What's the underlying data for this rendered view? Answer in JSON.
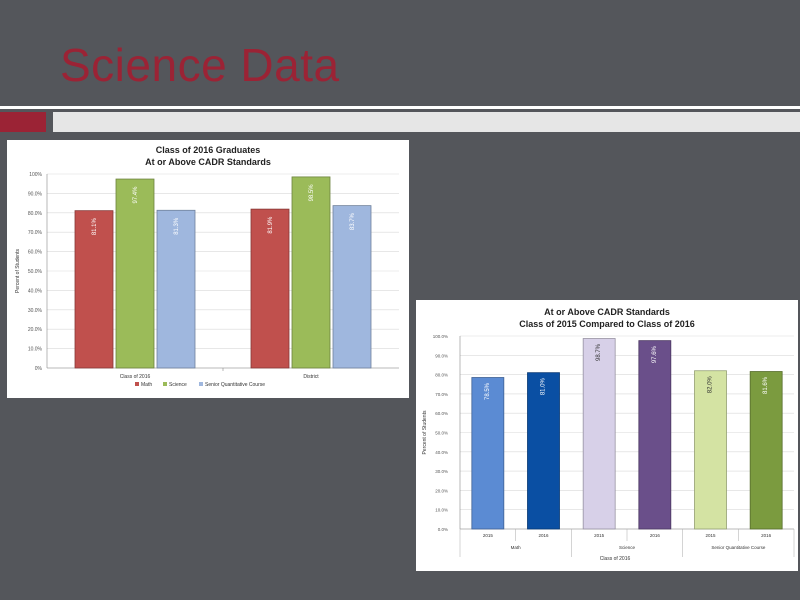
{
  "slide": {
    "title": "Science Data"
  },
  "colors": {
    "title_red": "#9b2335",
    "background": "#54565b",
    "accent_bar_red": "#9b2335",
    "accent_bar_light": "#e6e6e6"
  },
  "chart_data": [
    {
      "type": "bar",
      "title": "Class of 2016 Graduates",
      "subtitle": "At or Above CADR Standards",
      "ylabel": "Percent of Students",
      "xlabel": "",
      "ylim": [
        0,
        100
      ],
      "yticks": [
        "0%",
        "10.0%",
        "20.0%",
        "30.0%",
        "40.0%",
        "50.0%",
        "60.0%",
        "70.0%",
        "80.0%",
        "90.0%",
        "100%"
      ],
      "categories": [
        "Class of 2016",
        "District"
      ],
      "series": [
        {
          "name": "Math",
          "color": "#c0504d",
          "values": [
            81.1,
            81.9
          ],
          "labels": [
            "81.1%",
            "81.9%"
          ]
        },
        {
          "name": "Science",
          "color": "#9bbb59",
          "values": [
            97.4,
            98.5
          ],
          "labels": [
            "97.4%",
            "98.5%"
          ]
        },
        {
          "name": "Senior Quantitative Course",
          "color": "#9fb7de",
          "values": [
            81.3,
            83.7
          ],
          "labels": [
            "81.3%",
            "83.7%"
          ]
        }
      ],
      "grid": true,
      "legend_position": "bottom"
    },
    {
      "type": "bar",
      "title": "At or Above CADR Standards",
      "subtitle": "Class of 2015 Compared to Class of 2016",
      "ylabel": "Percent of Students",
      "xlabel": "Class of 2016",
      "ylim": [
        0,
        100
      ],
      "yticks": [
        "0.0%",
        "10.0%",
        "20.0%",
        "30.0%",
        "40.0%",
        "50.0%",
        "60.0%",
        "70.0%",
        "80.0%",
        "90.0%",
        "100.0%"
      ],
      "categories": [
        "2015",
        "2016",
        "2015",
        "2016",
        "2015",
        "2016"
      ],
      "groups": [
        {
          "label": "Math",
          "span": [
            0,
            1
          ]
        },
        {
          "label": "Science",
          "span": [
            2,
            3
          ]
        },
        {
          "label": "Senior Quantitative Course",
          "span": [
            4,
            5
          ]
        }
      ],
      "values": [
        78.5,
        81.0,
        98.7,
        97.6,
        82.0,
        81.6
      ],
      "value_labels": [
        "78.5%",
        "81.0%",
        "98.7%",
        "97.6%",
        "82.0%",
        "81.6%"
      ],
      "colors": [
        "#5b8bd3",
        "#0a4fa3",
        "#d7d0e8",
        "#6a4f8a",
        "#d4e3a3",
        "#7b9b3f"
      ],
      "grid": true,
      "legend_position": "none"
    }
  ]
}
